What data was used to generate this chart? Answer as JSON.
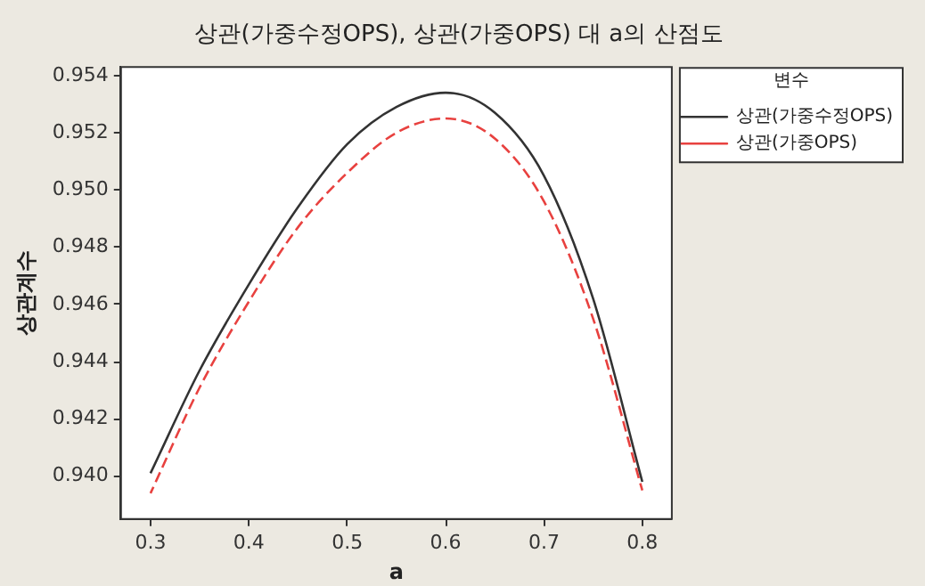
{
  "chart_data": {
    "type": "line",
    "title": "상관(가중수정OPS), 상관(가중OPS) 대 a의 산점도",
    "xlabel": "a",
    "ylabel": "상관계수",
    "legend_title": "변수",
    "x": [
      0.3,
      0.35,
      0.4,
      0.45,
      0.5,
      0.55,
      0.6,
      0.65,
      0.7,
      0.75,
      0.8
    ],
    "series": [
      {
        "name": "상관(가중수정OPS)",
        "color": "#333333",
        "line_style": "solid",
        "values": [
          0.9401,
          0.9437,
          0.9467,
          0.9494,
          0.9516,
          0.9529,
          0.9534,
          0.9527,
          0.9505,
          0.9462,
          0.9398
        ]
      },
      {
        "name": "상관(가중OPS)",
        "color": "#e8413f",
        "line_style": "dashed",
        "values": [
          0.9394,
          0.9431,
          0.9461,
          0.9487,
          0.9506,
          0.952,
          0.9525,
          0.9518,
          0.9496,
          0.9455,
          0.9395
        ]
      }
    ],
    "xlim": [
      0.27,
      0.83
    ],
    "xticks": [
      0.3,
      0.4,
      0.5,
      0.6,
      0.7,
      0.8
    ],
    "ylim": [
      0.9385,
      0.9543
    ],
    "yticks": [
      {
        "value": 0.94,
        "label": "0.940"
      },
      0.942,
      0.944,
      0.946,
      0.948,
      {
        "value": 0.95,
        "label": "0.950"
      },
      0.952,
      0.954
    ],
    "grid": false,
    "legend": "top right",
    "marker": "none"
  }
}
